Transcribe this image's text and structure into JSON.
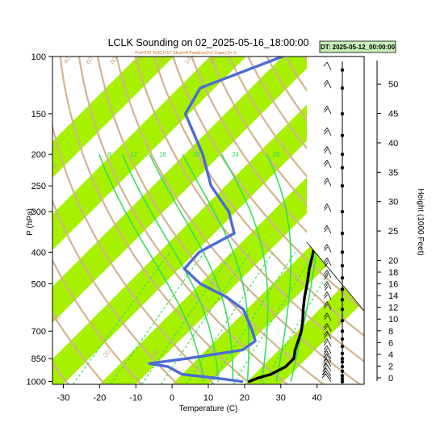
{
  "chart_data": {
    "type": "line",
    "title": "LCLK Sounding on 02_2025-05-16_18:00:00",
    "subtitle": "Pcl=975 Tcl(C)=17 Shox=8 Pwat(cm)=2 Cape(J)= 0",
    "dt_label": "DT: 2025-05-12_00:00:00",
    "xlabel": "Temperature (C)",
    "ylabel": "P (hPa)",
    "y2label": "Height (1000 Feet)",
    "xlim": [
      -33,
      53
    ],
    "ylim": [
      1020,
      100
    ],
    "x_ticks": [
      -30,
      -20,
      -10,
      0,
      10,
      20,
      30,
      40
    ],
    "y_ticks": [
      100,
      150,
      200,
      250,
      300,
      400,
      500,
      700,
      850,
      1000
    ],
    "height_ticks": [
      0,
      2,
      4,
      6,
      8,
      10,
      12,
      14,
      16,
      18,
      20,
      25,
      30,
      35,
      40,
      45,
      50
    ],
    "skew": 1.0,
    "colors": {
      "temperature": "#000000",
      "dewpoint": "#4b6bd6",
      "green_band": "#a6f000",
      "dry_adiabat": "#d2b48c",
      "moist_adiabat": "#33e05a",
      "mixing_ratio": "#33e05a",
      "dt_box": "#c8f0b8"
    },
    "isotherm_band_starts": [
      -100,
      -80,
      -60,
      -40,
      -20,
      0,
      20
    ],
    "dry_adiabat_labels": [
      "40",
      "60",
      "80",
      "100",
      "120",
      "140",
      "160",
      "0",
      "10",
      "20",
      "30",
      "40",
      "30",
      "20",
      "10",
      "0",
      "30",
      "-20",
      "-10",
      "10"
    ],
    "moist_adiabat_labels": [
      "8",
      "12",
      "16",
      "20",
      "24",
      "28",
      "32"
    ],
    "moist_adiabat_thetas_c": [
      8,
      12,
      16,
      20,
      24,
      28,
      32
    ],
    "mixing_ratios_gkg": [
      0.4,
      1,
      2,
      3,
      5,
      8,
      12,
      20
    ],
    "series": [
      {
        "name": "temperature",
        "points": [
          {
            "p": 1000,
            "t": 20.5
          },
          {
            "p": 975,
            "t": 22
          },
          {
            "p": 950,
            "t": 24.5
          },
          {
            "p": 900,
            "t": 26.5
          },
          {
            "p": 850,
            "t": 26.5
          },
          {
            "p": 800,
            "t": 24.5
          },
          {
            "p": 700,
            "t": 21
          },
          {
            "p": 650,
            "t": 18.5
          },
          {
            "p": 600,
            "t": 15.5
          },
          {
            "p": 550,
            "t": 12.5
          },
          {
            "p": 500,
            "t": 9.5
          },
          {
            "p": 450,
            "t": 6
          },
          {
            "p": 400,
            "t": 2.5
          },
          {
            "p": 350,
            "t": -2
          },
          {
            "p": 300,
            "t": -7.5
          },
          {
            "p": 250,
            "t": -14.5
          },
          {
            "p": 200,
            "t": -22.5
          },
          {
            "p": 175,
            "t": -24.5
          },
          {
            "p": 150,
            "t": -19.5
          },
          {
            "p": 125,
            "t": -12
          },
          {
            "p": 110,
            "t": -3
          },
          {
            "p": 100,
            "t": 4
          }
        ]
      },
      {
        "name": "dewpoint",
        "points": [
          {
            "p": 1000,
            "t": 18.5
          },
          {
            "p": 975,
            "t": 10
          },
          {
            "p": 950,
            "t": 0
          },
          {
            "p": 900,
            "t": -6
          },
          {
            "p": 880,
            "t": -12
          },
          {
            "p": 850,
            "t": -3
          },
          {
            "p": 800,
            "t": 10
          },
          {
            "p": 750,
            "t": 11
          },
          {
            "p": 700,
            "t": 7.5
          },
          {
            "p": 600,
            "t": -1
          },
          {
            "p": 550,
            "t": -9
          },
          {
            "p": 500,
            "t": -20
          },
          {
            "p": 450,
            "t": -28.5
          },
          {
            "p": 400,
            "t": -29
          },
          {
            "p": 350,
            "t": -24.5
          },
          {
            "p": 300,
            "t": -32
          },
          {
            "p": 250,
            "t": -44
          },
          {
            "p": 200,
            "t": -55
          },
          {
            "p": 150,
            "t": -71
          },
          {
            "p": 125,
            "t": -74
          },
          {
            "p": 110,
            "t": -66
          },
          {
            "p": 100,
            "t": -60
          }
        ]
      }
    ],
    "winds": [
      {
        "p": 1000,
        "dir": 200,
        "spd": 10
      },
      {
        "p": 980,
        "dir": 200,
        "spd": 15
      },
      {
        "p": 960,
        "dir": 210,
        "spd": 15
      },
      {
        "p": 930,
        "dir": 220,
        "spd": 20
      },
      {
        "p": 900,
        "dir": 230,
        "spd": 20
      },
      {
        "p": 870,
        "dir": 240,
        "spd": 20
      },
      {
        "p": 850,
        "dir": 240,
        "spd": 20
      },
      {
        "p": 820,
        "dir": 250,
        "spd": 20
      },
      {
        "p": 780,
        "dir": 250,
        "spd": 15
      },
      {
        "p": 740,
        "dir": 260,
        "spd": 15
      },
      {
        "p": 700,
        "dir": 260,
        "spd": 15
      },
      {
        "p": 650,
        "dir": 260,
        "spd": 20
      },
      {
        "p": 600,
        "dir": 260,
        "spd": 20
      },
      {
        "p": 560,
        "dir": 260,
        "spd": 20
      },
      {
        "p": 520,
        "dir": 260,
        "spd": 25
      },
      {
        "p": 480,
        "dir": 260,
        "spd": 25
      },
      {
        "p": 440,
        "dir": 260,
        "spd": 25
      },
      {
        "p": 400,
        "dir": 260,
        "spd": 20
      },
      {
        "p": 350,
        "dir": 260,
        "spd": 20
      },
      {
        "p": 300,
        "dir": 260,
        "spd": 20
      },
      {
        "p": 250,
        "dir": 260,
        "spd": 20
      },
      {
        "p": 220,
        "dir": 260,
        "spd": 20
      },
      {
        "p": 200,
        "dir": 260,
        "spd": 20
      },
      {
        "p": 175,
        "dir": 260,
        "spd": 15
      },
      {
        "p": 150,
        "dir": 260,
        "spd": 15
      },
      {
        "p": 125,
        "dir": 260,
        "spd": 15
      },
      {
        "p": 110,
        "dir": 260,
        "spd": 10
      }
    ]
  }
}
